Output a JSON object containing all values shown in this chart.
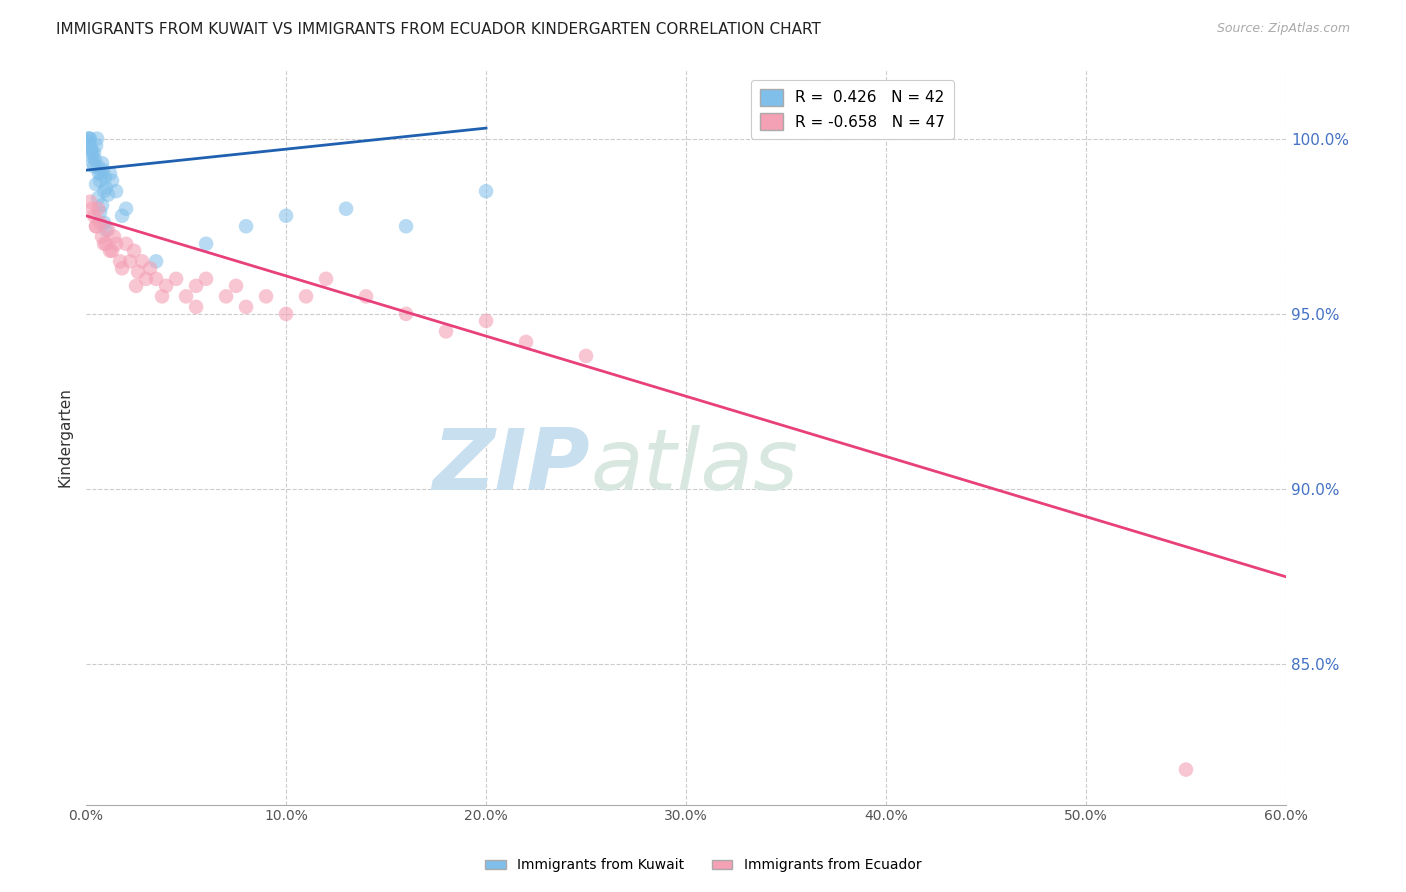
{
  "title": "IMMIGRANTS FROM KUWAIT VS IMMIGRANTS FROM ECUADOR KINDERGARTEN CORRELATION CHART",
  "source": "Source: ZipAtlas.com",
  "ylabel_left": "Kindergarten",
  "x_tick_labels": [
    "0.0%",
    "10.0%",
    "20.0%",
    "30.0%",
    "40.0%",
    "50.0%",
    "60.0%"
  ],
  "x_tick_values": [
    0.0,
    10.0,
    20.0,
    30.0,
    40.0,
    50.0,
    60.0
  ],
  "y_tick_labels": [
    "85.0%",
    "90.0%",
    "95.0%",
    "100.0%"
  ],
  "y_tick_values": [
    85.0,
    90.0,
    95.0,
    100.0
  ],
  "xlim": [
    0.0,
    60.0
  ],
  "ylim": [
    81.0,
    102.0
  ],
  "legend_entry_kuwait": "R =  0.426   N = 42",
  "legend_entry_ecuador": "R = -0.658   N = 47",
  "watermark_zip": "ZIP",
  "watermark_atlas": "atlas",
  "watermark_color": "#d0e4f5",
  "title_fontsize": 11,
  "source_fontsize": 9,
  "axis_label_color": "#4472c4",
  "grid_color": "#cccccc",
  "grid_style": "--",
  "kuwait_color": "#7fbfea",
  "ecuador_color": "#f4a0b5",
  "kuwait_trend_color": "#2060b0",
  "ecuador_trend_color": "#e8407a",
  "kuwait_scatter_x": [
    0.1,
    0.15,
    0.2,
    0.25,
    0.3,
    0.35,
    0.4,
    0.45,
    0.5,
    0.55,
    0.6,
    0.65,
    0.7,
    0.75,
    0.8,
    0.85,
    0.9,
    0.95,
    1.0,
    1.1,
    1.2,
    1.3,
    1.5,
    1.8,
    2.0,
    0.1,
    0.2,
    0.3,
    0.4,
    0.5,
    0.6,
    0.7,
    0.8,
    0.9,
    1.0,
    3.5,
    6.0,
    8.0,
    10.0,
    13.0,
    16.0,
    20.0
  ],
  "kuwait_scatter_y": [
    100.0,
    100.0,
    99.8,
    99.7,
    99.5,
    99.3,
    99.6,
    99.4,
    99.8,
    100.0,
    99.2,
    99.0,
    98.8,
    99.0,
    99.3,
    99.1,
    98.5,
    98.9,
    98.6,
    98.4,
    99.0,
    98.8,
    98.5,
    97.8,
    98.0,
    99.9,
    100.0,
    99.6,
    99.2,
    98.7,
    98.3,
    97.9,
    98.1,
    97.6,
    97.4,
    96.5,
    97.0,
    97.5,
    97.8,
    98.0,
    97.5,
    98.5
  ],
  "ecuador_scatter_x": [
    0.2,
    0.4,
    0.5,
    0.6,
    0.7,
    0.8,
    1.0,
    1.1,
    1.2,
    1.4,
    1.5,
    1.7,
    2.0,
    2.2,
    2.4,
    2.6,
    2.8,
    3.0,
    3.2,
    3.5,
    4.0,
    4.5,
    5.0,
    5.5,
    6.0,
    7.0,
    7.5,
    8.0,
    9.0,
    10.0,
    11.0,
    12.0,
    14.0,
    16.0,
    18.0,
    20.0,
    22.0,
    25.0,
    0.3,
    0.5,
    0.9,
    1.3,
    1.8,
    2.5,
    3.8,
    5.5,
    55.0
  ],
  "ecuador_scatter_y": [
    98.2,
    97.8,
    97.5,
    98.0,
    97.6,
    97.2,
    97.0,
    97.4,
    96.8,
    97.2,
    97.0,
    96.5,
    97.0,
    96.5,
    96.8,
    96.2,
    96.5,
    96.0,
    96.3,
    96.0,
    95.8,
    96.0,
    95.5,
    95.8,
    96.0,
    95.5,
    95.8,
    95.2,
    95.5,
    95.0,
    95.5,
    96.0,
    95.5,
    95.0,
    94.5,
    94.8,
    94.2,
    93.8,
    98.0,
    97.5,
    97.0,
    96.8,
    96.3,
    95.8,
    95.5,
    95.2,
    82.0
  ],
  "kuwait_trend_x": [
    0.0,
    20.0
  ],
  "kuwait_trend_y": [
    99.1,
    100.3
  ],
  "ecuador_trend_x": [
    0.0,
    60.0
  ],
  "ecuador_trend_y": [
    97.8,
    87.5
  ],
  "bottom_legend_kuwait": "Immigrants from Kuwait",
  "bottom_legend_ecuador": "Immigrants from Ecuador"
}
